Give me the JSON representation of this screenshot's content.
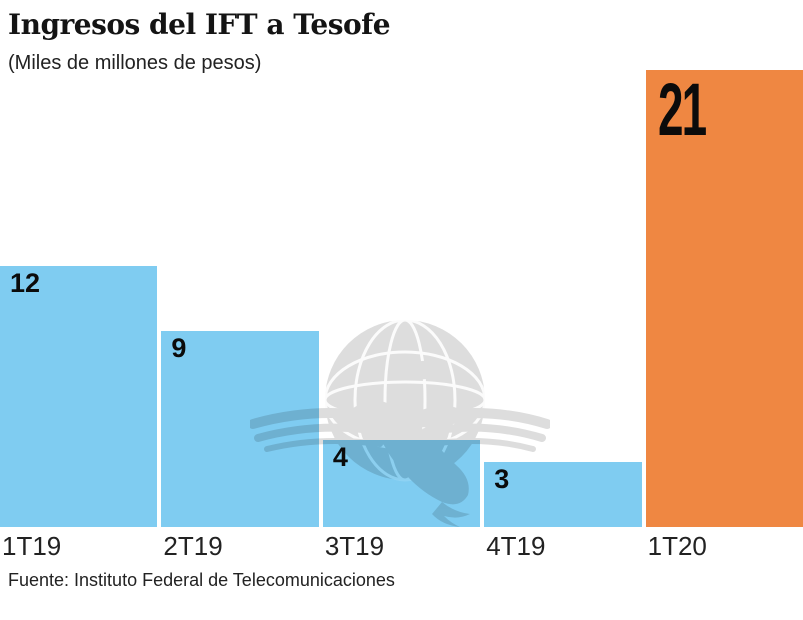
{
  "chart": {
    "title": "Ingresos del IFT a Tesofe",
    "subtitle": "(Miles de millones de pesos)",
    "source": "Fuente: Instituto Federal de Telecomunicaciones"
  },
  "colors": {
    "bar_default": "#7fccf1",
    "bar_highlight": "#ef8742",
    "value_label": "#0b0b0b",
    "axis_label": "#222222",
    "watermark_grey": "#d9d9d9"
  },
  "watermark": "el-universal-eagle-globe",
  "chart_data": {
    "type": "bar",
    "title": "Ingresos del IFT a Tesofe",
    "subtitle": "(Miles de millones de pesos)",
    "source": "Fuente: Instituto Federal de Telecomunicaciones",
    "categories": [
      "1T19",
      "2T19",
      "3T19",
      "4T19",
      "1T20"
    ],
    "values": [
      12,
      9,
      4,
      3,
      21
    ],
    "bar_labels": [
      "12",
      "9",
      "4",
      "3",
      "21"
    ],
    "highlight_index": 4,
    "xlabel": "",
    "ylabel": "",
    "ylim": [
      0,
      21
    ],
    "grid": false,
    "legend": false,
    "value_labels_position": "inside-top-left"
  }
}
